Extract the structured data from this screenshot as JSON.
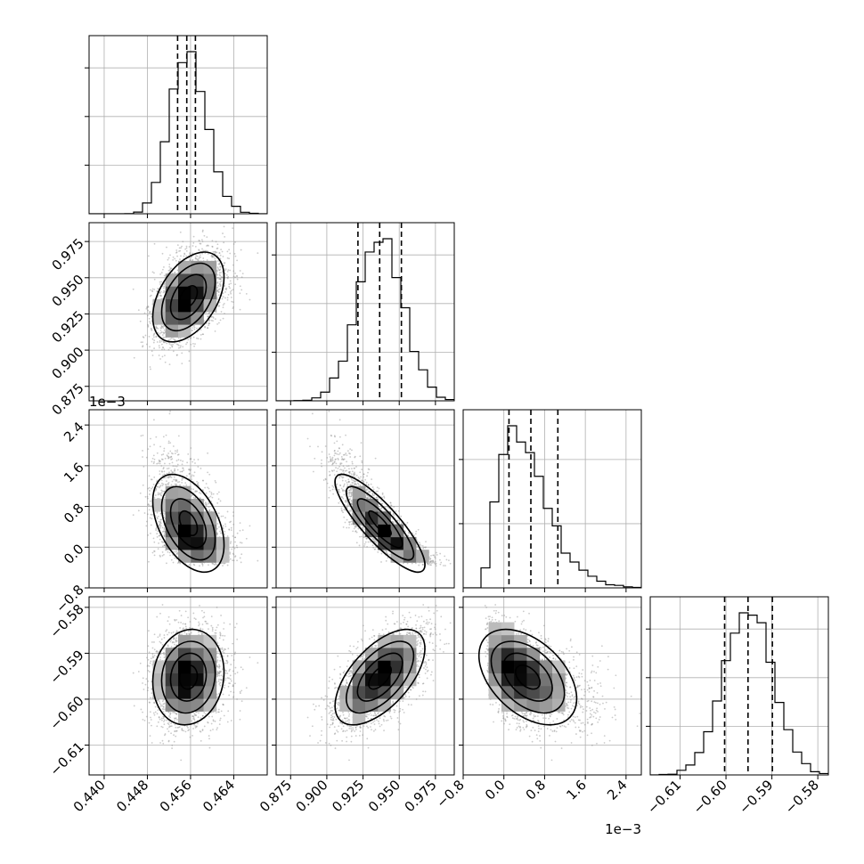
{
  "chart_data": {
    "type": "corner",
    "parameters": [
      {
        "range": [
          0.4372,
          0.4702
        ],
        "ticks": [
          0.44,
          0.448,
          0.456,
          0.464
        ],
        "tick_labels": [
          "0.440",
          "0.448",
          "0.456",
          "0.464"
        ],
        "quantiles": [
          0.4536,
          0.4553,
          0.4569
        ],
        "hist_peak": 1.0,
        "hist_yticks": [
          0.25,
          0.5,
          0.75
        ],
        "center": 0.4556,
        "sigma": 0.0033,
        "skew": 0.08
      },
      {
        "range": [
          0.865,
          0.988
        ],
        "ticks": [
          0.875,
          0.9,
          0.925,
          0.95,
          0.975
        ],
        "tick_labels": [
          "0.875",
          "0.900",
          "0.925",
          "0.950",
          "0.975"
        ],
        "quantiles": [
          0.9215,
          0.9365,
          0.9515
        ],
        "hist_peak": 1.0,
        "hist_yticks": [
          0.25,
          0.5,
          0.75
        ],
        "center": 0.9367,
        "sigma": 0.0155,
        "skew": 0.05
      },
      {
        "range": [
          -0.0008,
          0.0027
        ],
        "ticks": [
          -0.0008,
          0.0,
          0.0008,
          0.0016,
          0.0024
        ],
        "tick_labels": [
          "−0.8",
          "0.0",
          "0.8",
          "1.6",
          "2.4"
        ],
        "offset_text": "1e−3",
        "quantiles": [
          0.0001,
          0.00053,
          0.00106
        ],
        "hist_peak": 1.0,
        "hist_yticks": [
          0.33,
          0.66
        ],
        "center": 0.00047,
        "sigma": 0.00048,
        "skew": 0.45
      },
      {
        "range": [
          -0.6165,
          -0.5777
        ],
        "ticks": [
          -0.61,
          -0.6,
          -0.59,
          -0.58
        ],
        "tick_labels": [
          "−0.61",
          "−0.60",
          "−0.59",
          "−0.58"
        ],
        "quantiles": [
          -0.6003,
          -0.5952,
          -0.5899
        ],
        "hist_peak": 1.0,
        "hist_yticks": [
          0.25,
          0.5,
          0.75
        ],
        "center": -0.5952,
        "sigma": 0.0052,
        "skew": 0.0
      }
    ],
    "correlations": [
      [
        1.0,
        0.45,
        -0.45,
        0.1
      ],
      [
        0.45,
        1.0,
        -0.85,
        0.6
      ],
      [
        -0.45,
        -0.85,
        1.0,
        -0.45
      ],
      [
        0.1,
        0.6,
        -0.45,
        1.0
      ]
    ],
    "contour_levels_sigma": [
      0.5,
      1.0,
      1.5,
      2.0
    ],
    "grid": true,
    "colors": {
      "line": "#000000",
      "points": "#8c8c8c",
      "grid": "#b0b0b0",
      "background": "#ffffff"
    }
  }
}
